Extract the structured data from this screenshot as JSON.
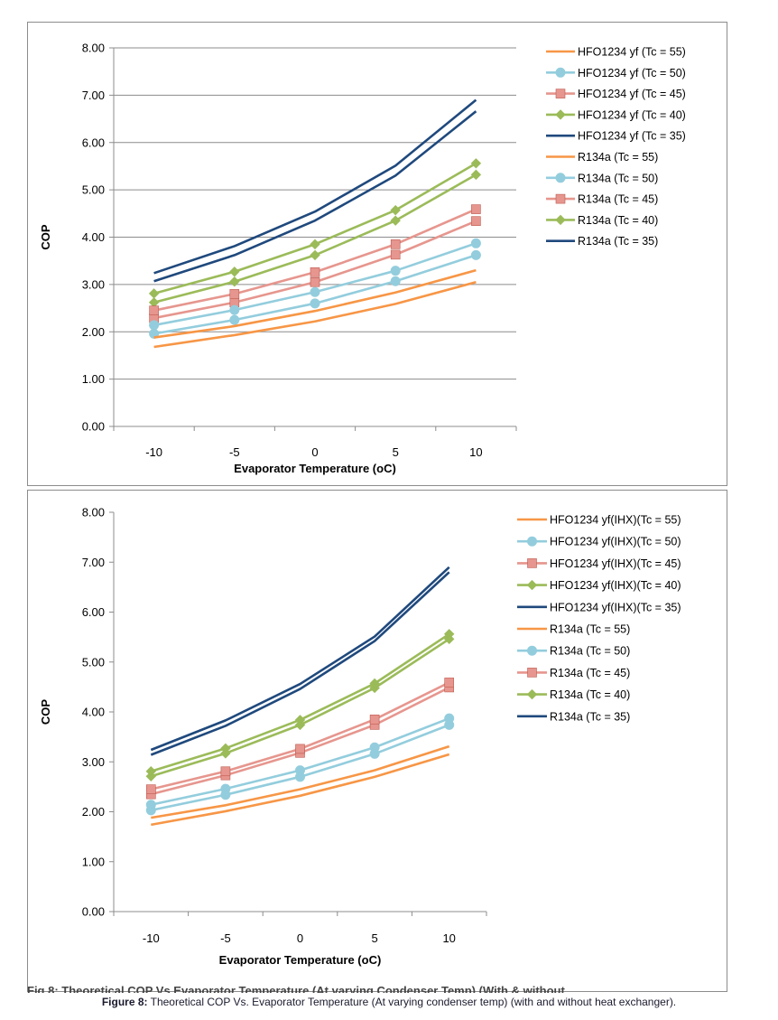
{
  "colors": {
    "tc55": "#F79646",
    "tc50": "#93CDDD",
    "tc45": "#E6968E",
    "tc40": "#9BBB59",
    "tc35": "#1F497D",
    "gridline": "#8c8c8c",
    "axis": "#8c8c8c",
    "text": "#000000"
  },
  "caption": {
    "label": "Figure 8:",
    "text": " Theoretical COP Vs. Evaporator Temperature (At varying condenser temp) (with and without heat exchanger).",
    "cut_text": "Fig 8: Theoretical COP Vs Evaporator Temperature (At varying Condenser Temp) (With & without"
  },
  "chart_data": [
    {
      "type": "line",
      "title": "",
      "xlabel": "Evaporator Temperature (oC)",
      "ylabel": "COP",
      "categories": [
        "-10",
        "-5",
        "0",
        "5",
        "10"
      ],
      "ylim": [
        0,
        8
      ],
      "yticks": [
        "0.00",
        "1.00",
        "2.00",
        "3.00",
        "4.00",
        "5.00",
        "6.00",
        "7.00",
        "8.00"
      ],
      "grid": true,
      "legend": "right",
      "series": [
        {
          "name": "HFO1234  yf (Tc = 55)",
          "color": "tc55",
          "marker": "none",
          "values": [
            1.68,
            1.93,
            2.22,
            2.59,
            3.05
          ]
        },
        {
          "name": "HFO1234  yf (Tc = 50)",
          "color": "tc50",
          "marker": "circle",
          "values": [
            1.96,
            2.25,
            2.6,
            3.07,
            3.62
          ]
        },
        {
          "name": "HFO1234  yf (Tc = 45)",
          "color": "tc45",
          "marker": "square",
          "values": [
            2.29,
            2.62,
            3.05,
            3.63,
            4.34
          ]
        },
        {
          "name": "HFO1234  yf (Tc = 40)",
          "color": "tc40",
          "marker": "diamond",
          "values": [
            2.62,
            3.06,
            3.62,
            4.35,
            5.32
          ]
        },
        {
          "name": "HFO1234  yf (Tc = 35)",
          "color": "tc35",
          "marker": "none",
          "values": [
            3.07,
            3.62,
            4.35,
            5.3,
            6.66
          ]
        },
        {
          "name": "R134a  (Tc = 55)",
          "color": "tc55",
          "marker": "none",
          "values": [
            1.88,
            2.12,
            2.44,
            2.83,
            3.3
          ]
        },
        {
          "name": "R134a  (Tc = 50)",
          "color": "tc50",
          "marker": "circle",
          "values": [
            2.14,
            2.46,
            2.84,
            3.29,
            3.87
          ]
        },
        {
          "name": "R134a  (Tc = 45)",
          "color": "tc45",
          "marker": "square",
          "values": [
            2.45,
            2.8,
            3.26,
            3.85,
            4.59
          ]
        },
        {
          "name": "R134a  (Tc = 40)",
          "color": "tc40",
          "marker": "diamond",
          "values": [
            2.81,
            3.27,
            3.85,
            4.57,
            5.56
          ]
        },
        {
          "name": "R134a  (Tc = 35)",
          "color": "tc35",
          "marker": "none",
          "values": [
            3.24,
            3.81,
            4.54,
            5.51,
            6.9
          ]
        }
      ]
    },
    {
      "type": "line",
      "title": "",
      "xlabel": "Evaporator Temperature (oC)",
      "ylabel": "COP",
      "categories": [
        "-10",
        "-5",
        "0",
        "5",
        "10"
      ],
      "ylim": [
        0,
        8
      ],
      "yticks": [
        "0.00",
        "1.00",
        "2.00",
        "3.00",
        "4.00",
        "5.00",
        "6.00",
        "7.00",
        "8.00"
      ],
      "grid": false,
      "legend": "right",
      "series": [
        {
          "name": "HFO1234  yf(IHX)(Tc = 55)",
          "color": "tc55",
          "marker": "none",
          "values": [
            1.74,
            2.01,
            2.32,
            2.7,
            3.15
          ]
        },
        {
          "name": "HFO1234  yf(IHX)(Tc = 50)",
          "color": "tc50",
          "marker": "circle",
          "values": [
            2.03,
            2.34,
            2.7,
            3.16,
            3.74
          ]
        },
        {
          "name": "HFO1234  yf(IHX)(Tc = 45)",
          "color": "tc45",
          "marker": "square",
          "values": [
            2.35,
            2.73,
            3.18,
            3.74,
            4.49
          ]
        },
        {
          "name": "HFO1234  yf(IHX)(Tc = 40)",
          "color": "tc40",
          "marker": "diamond",
          "values": [
            2.71,
            3.17,
            3.74,
            4.48,
            5.46
          ]
        },
        {
          "name": "HFO1234  yf(IHX)(Tc = 35)",
          "color": "tc35",
          "marker": "none",
          "values": [
            3.14,
            3.72,
            4.46,
            5.42,
            6.8
          ]
        },
        {
          "name": "R134a  (Tc = 55)",
          "color": "tc55",
          "marker": "none",
          "values": [
            1.88,
            2.13,
            2.45,
            2.83,
            3.31
          ]
        },
        {
          "name": "R134a  (Tc = 50)",
          "color": "tc50",
          "marker": "circle",
          "values": [
            2.14,
            2.46,
            2.83,
            3.29,
            3.87
          ]
        },
        {
          "name": "R134a  (Tc = 45)",
          "color": "tc45",
          "marker": "square",
          "values": [
            2.45,
            2.81,
            3.26,
            3.85,
            4.59
          ]
        },
        {
          "name": "R134a  (Tc = 40)",
          "color": "tc40",
          "marker": "diamond",
          "values": [
            2.81,
            3.27,
            3.84,
            4.57,
            5.56
          ]
        },
        {
          "name": "R134a  (Tc = 35)",
          "color": "tc35",
          "marker": "none",
          "values": [
            3.24,
            3.83,
            4.56,
            5.51,
            6.9
          ]
        }
      ]
    }
  ]
}
